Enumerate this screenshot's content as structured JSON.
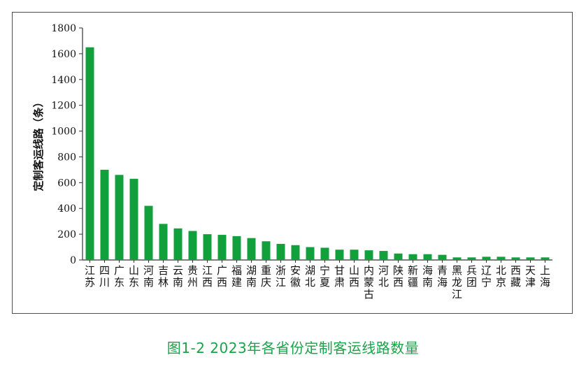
{
  "chart_data": {
    "type": "bar",
    "title": "",
    "xlabel": "",
    "ylabel": "定制客运线路（条）",
    "ylim": [
      0,
      1800
    ],
    "yticks": [
      0,
      200,
      400,
      600,
      800,
      1000,
      1200,
      1400,
      1600,
      1800
    ],
    "grid": false,
    "bar_color": "#12a03c",
    "categories": [
      "江苏",
      "四川",
      "广东",
      "山东",
      "河南",
      "吉林",
      "云南",
      "贵州",
      "江西",
      "广西",
      "福建",
      "湖南",
      "重庆",
      "浙江",
      "安徽",
      "湖北",
      "宁夏",
      "甘肃",
      "山西",
      "内蒙古",
      "河北",
      "陕西",
      "新疆",
      "海南",
      "青海",
      "黑龙江",
      "兵团",
      "辽宁",
      "北京",
      "西藏",
      "天津",
      "上海"
    ],
    "values": [
      1650,
      700,
      660,
      630,
      420,
      280,
      245,
      225,
      200,
      195,
      185,
      170,
      145,
      125,
      115,
      100,
      95,
      80,
      80,
      75,
      70,
      50,
      45,
      45,
      40,
      20,
      20,
      25,
      25,
      20,
      20,
      20
    ]
  },
  "caption": "图1-2  2023年各省份定制客运线路数量"
}
